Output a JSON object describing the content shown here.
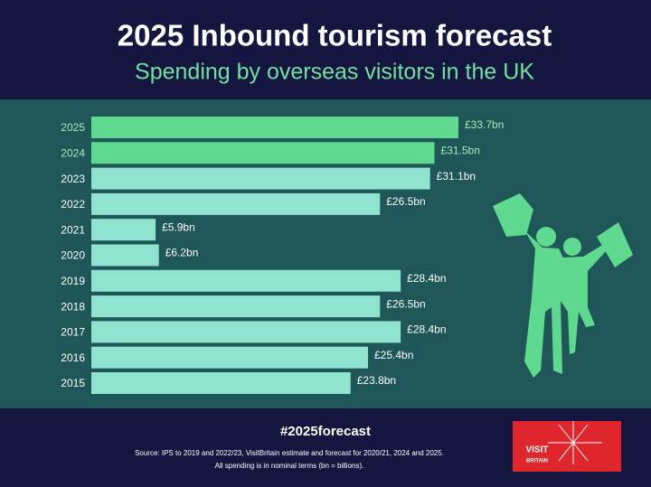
{
  "chart_data": {
    "type": "bar",
    "orientation": "horizontal",
    "title": "2025 Inbound tourism forecast",
    "subtitle": "Spending by overseas visitors in the UK",
    "categories": [
      "2025",
      "2024",
      "2023",
      "2022",
      "2021",
      "2020",
      "2019",
      "2018",
      "2017",
      "2016",
      "2015"
    ],
    "values": [
      33.7,
      31.5,
      31.1,
      26.5,
      5.9,
      6.2,
      28.4,
      26.5,
      28.4,
      25.4,
      23.8
    ],
    "value_labels": [
      "£33.7bn",
      "£31.5bn",
      "£31.1bn",
      "£26.5bn",
      "£5.9bn",
      "£6.2bn",
      "£28.4bn",
      "£26.5bn",
      "£28.4bn",
      "£25.4bn",
      "£23.8bn"
    ],
    "colors": [
      "#5fd98f",
      "#5fd98f",
      "#8fe3cf",
      "#8fe3cf",
      "#8fe3cf",
      "#8fe3cf",
      "#8fe3cf",
      "#8fe3cf",
      "#8fe3cf",
      "#8fe3cf",
      "#8fe3cf"
    ],
    "label_colors": [
      "#a6ebbb",
      "#a6ebbb",
      "#ffffff",
      "#ffffff",
      "#ffffff",
      "#ffffff",
      "#ffffff",
      "#ffffff",
      "#ffffff",
      "#ffffff",
      "#ffffff"
    ]
  },
  "footer": {
    "hashtag": "#2025forecast",
    "source_line1": "Source: IPS to 2019 and 2022/23, VisitBritain estimate and forecast for 2020/21, 2024 and 2025.",
    "source_line2": "All spending is in nominal terms (bn = billions)."
  },
  "logo": {
    "line1": "VISIT",
    "line2": "BRITAIN"
  }
}
